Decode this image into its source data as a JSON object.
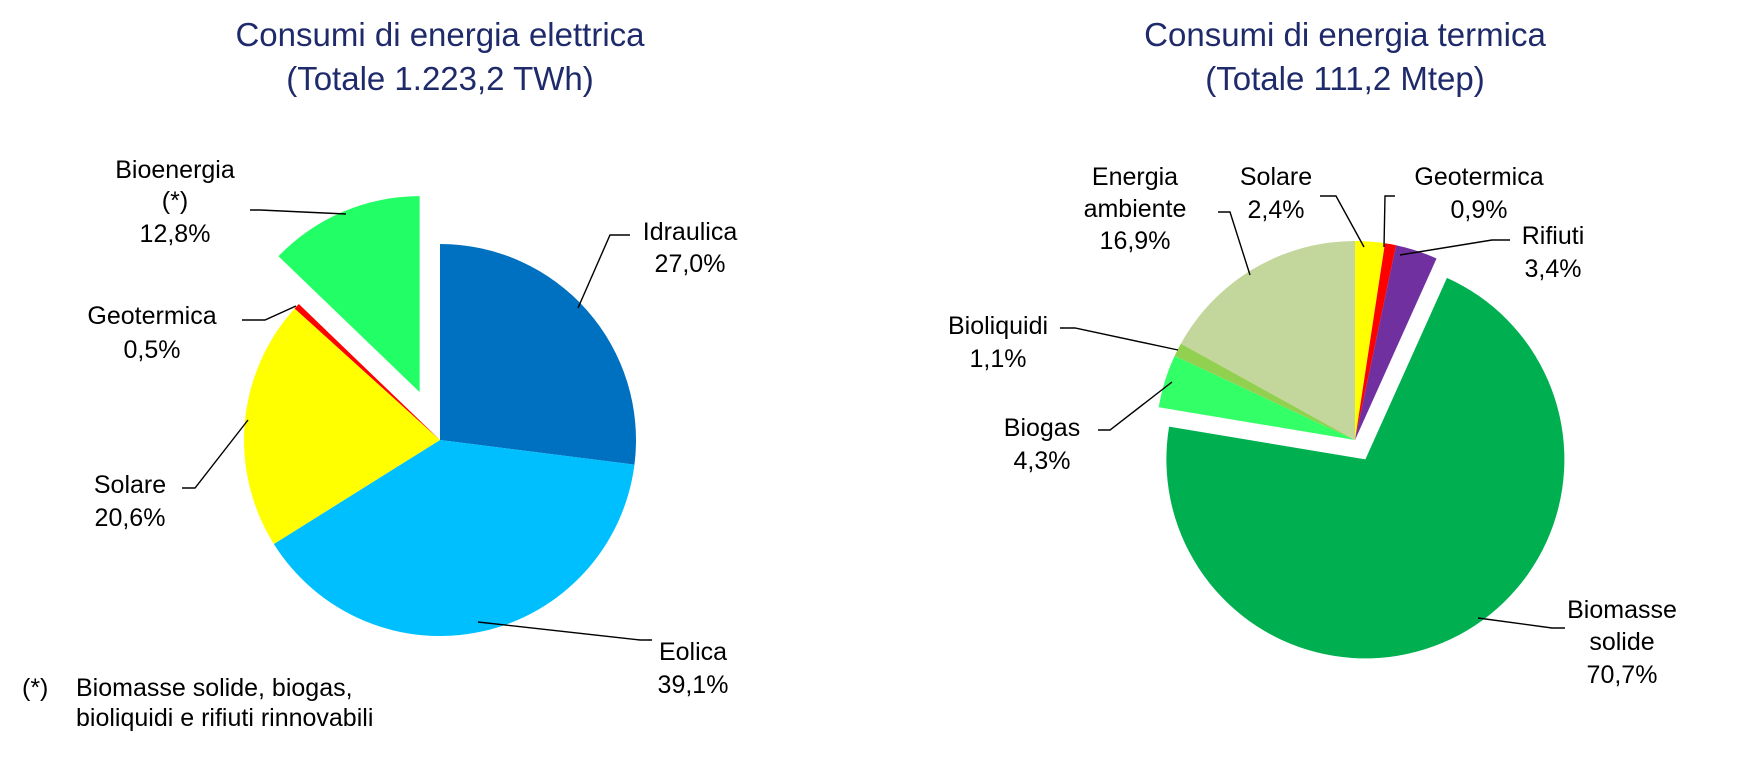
{
  "chart_data": [
    {
      "type": "pie",
      "title": "Consumi di energia elettrica",
      "subtitle": "(Totale 1.223,2 TWh)",
      "slices": [
        {
          "label": "Idraulica",
          "label_lines": [
            "Idraulica"
          ],
          "value": 27.0,
          "value_text": "27,0%",
          "color": "#0070c0",
          "exploded": false
        },
        {
          "label": "Eolica",
          "label_lines": [
            "Eolica"
          ],
          "value": 39.1,
          "value_text": "39,1%",
          "color": "#00bfff",
          "exploded": false
        },
        {
          "label": "Solare",
          "label_lines": [
            "Solare"
          ],
          "value": 20.6,
          "value_text": "20,6%",
          "color": "#ffff00",
          "exploded": false
        },
        {
          "label": "Geotermica",
          "label_lines": [
            "Geotermica"
          ],
          "value": 0.5,
          "value_text": "0,5%",
          "color": "#ff0000",
          "exploded": false
        },
        {
          "label": "Bioenergia (*)",
          "label_lines": [
            "Bioenergia",
            "(*)"
          ],
          "value": 12.8,
          "value_text": "12,8%",
          "color": "#22ff66",
          "exploded": true
        }
      ],
      "footnote": {
        "marker": "(*)",
        "lines": [
          "Biomasse solide, biogas,",
          "bioliquidi  e  rifiuti  rinnovabili"
        ]
      }
    },
    {
      "type": "pie",
      "title": "Consumi di energia termica",
      "subtitle": "(Totale 111,2 Mtep)",
      "slices": [
        {
          "label": "Solare",
          "label_lines": [
            "Solare"
          ],
          "value": 2.4,
          "value_text": "2,4%",
          "color": "#ffff00",
          "exploded": false
        },
        {
          "label": "Geotermica",
          "label_lines": [
            "Geotermica"
          ],
          "value": 0.9,
          "value_text": "0,9%",
          "color": "#ff0000",
          "exploded": false
        },
        {
          "label": "Rifiuti",
          "label_lines": [
            "Rifiuti"
          ],
          "value": 3.4,
          "value_text": "3,4%",
          "color": "#7030a0",
          "exploded": false
        },
        {
          "label": "Biomasse solide",
          "label_lines": [
            "Biomasse",
            "solide"
          ],
          "value": 70.7,
          "value_text": "70,7%",
          "color": "#00b050",
          "exploded": true
        },
        {
          "label": "Biogas",
          "label_lines": [
            "Biogas"
          ],
          "value": 4.3,
          "value_text": "4,3%",
          "color": "#33ff66",
          "exploded": false
        },
        {
          "label": "Bioliquidi",
          "label_lines": [
            "Bioliquidi"
          ],
          "value": 1.1,
          "value_text": "1,1%",
          "color": "#92d050",
          "exploded": false
        },
        {
          "label": "Energia ambiente",
          "label_lines": [
            "Energia",
            "ambiente"
          ],
          "value": 16.9,
          "value_text": "16,9%",
          "color": "#c3d69b",
          "exploded": false
        }
      ]
    }
  ]
}
